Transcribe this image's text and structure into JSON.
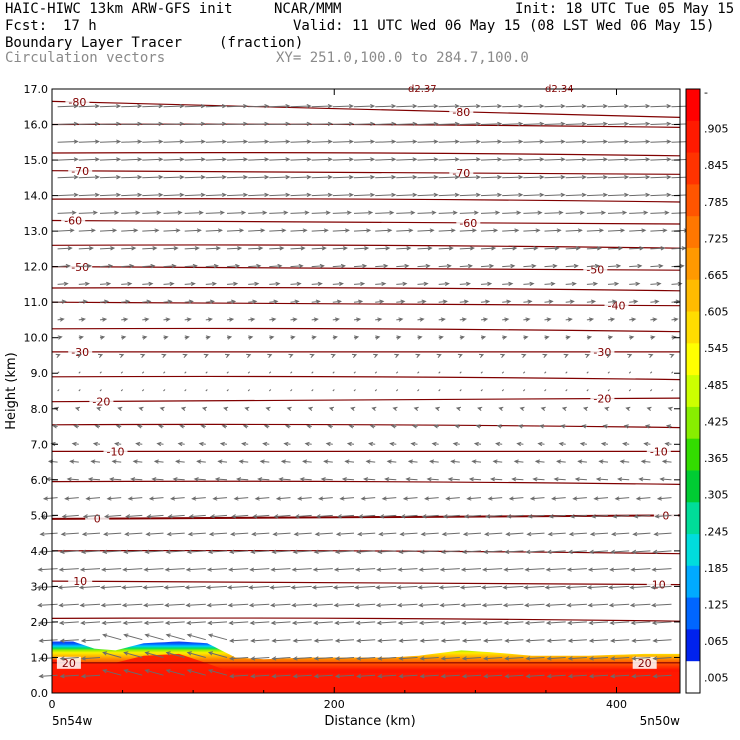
{
  "header": {
    "model": "HAIC-HIWC 13km ARW-GFS init",
    "org": "NCAR/MMM",
    "init": "Init: 18 UTC Tue 05 May 15",
    "fcst_label": "Fcst:",
    "fcst_value": "17 h",
    "valid": "Valid: 11 UTC Wed 06 May 15 (08 LST Wed 06 May 15)",
    "field": "Boundary Layer Tracer",
    "field_units": "(fraction)",
    "overlay": "Circulation vectors",
    "xy": "XY= 251.0,100.0 to 284.7,100.0",
    "top_clipped_left": "d2.37",
    "top_clipped_right": "d2.34"
  },
  "chart_data": {
    "type": "heatmap",
    "xlabel": "Distance (km)",
    "ylabel": "Height (km)",
    "xlim": [
      0,
      445
    ],
    "ylim": [
      0,
      17
    ],
    "x_ticks": [
      "0",
      "200",
      "400"
    ],
    "x_tick_values": [
      0,
      200,
      400
    ],
    "x_end_left": "5n54w",
    "x_end_right": "5n50w",
    "y_ticks": [
      "0.0",
      "1.0",
      "2.0",
      "3.0",
      "4.0",
      "5.0",
      "6.0",
      "7.0",
      "8.0",
      "9.0",
      "10.0",
      "11.0",
      "12.0",
      "13.0",
      "14.0",
      "15.0",
      "16.0",
      "17.0"
    ],
    "colorbar": {
      "labels": [
        "-",
        ".905",
        ".845",
        ".785",
        ".725",
        ".665",
        ".605",
        ".545",
        ".485",
        ".425",
        ".365",
        ".305",
        ".245",
        ".185",
        ".125",
        ".065",
        ".005"
      ],
      "colors_top_to_bottom": [
        "#ff0000",
        "#ff1a00",
        "#ff3300",
        "#ff5500",
        "#ff7700",
        "#ff9900",
        "#ffbb00",
        "#ffdd00",
        "#ffff00",
        "#ccff00",
        "#88ee00",
        "#33dd00",
        "#00cc33",
        "#00dd99",
        "#00dddd",
        "#00aaff",
        "#0066ff",
        "#0022ee",
        "#ffffff"
      ]
    },
    "tracer_layer": {
      "top_height_km": [
        [
          0,
          1.45
        ],
        [
          15,
          1.45
        ],
        [
          30,
          1.25
        ],
        [
          45,
          1.2
        ],
        [
          65,
          1.4
        ],
        [
          90,
          1.45
        ],
        [
          110,
          1.4
        ],
        [
          130,
          1.0
        ],
        [
          150,
          0.95
        ],
        [
          180,
          1.0
        ],
        [
          200,
          1.0
        ],
        [
          240,
          1.0
        ],
        [
          260,
          1.05
        ],
        [
          290,
          1.2
        ],
        [
          310,
          1.15
        ],
        [
          340,
          1.05
        ],
        [
          380,
          1.05
        ],
        [
          420,
          1.1
        ],
        [
          445,
          1.1
        ]
      ]
    },
    "temperature_contours": [
      {
        "label": "-80",
        "y_km_left": 16.65,
        "y_km_right": 16.2,
        "label_x_km": [
          18,
          290
        ]
      },
      {
        "label": "-70",
        "y_km_left": 14.7,
        "y_km_right": 14.6,
        "label_x_km": [
          20,
          290
        ]
      },
      {
        "label": "-60",
        "y_km_left": 13.3,
        "y_km_right": 13.2,
        "label_x_km": [
          15,
          295
        ]
      },
      {
        "label": "-50",
        "y_km_left": 12.0,
        "y_km_right": 11.9,
        "label_x_km": [
          20,
          385
        ]
      },
      {
        "label": "-40",
        "y_km_left": 11.0,
        "y_km_right": 10.9,
        "label_x_km": [
          400
        ]
      },
      {
        "label": "-30",
        "y_km_left": 9.6,
        "y_km_right": 9.6,
        "label_x_km": [
          20,
          390
        ]
      },
      {
        "label": "-20",
        "y_km_left": 8.2,
        "y_km_right": 8.3,
        "label_x_km": [
          35,
          390
        ]
      },
      {
        "label": "-10",
        "y_km_left": 6.8,
        "y_km_right": 6.8,
        "label_x_km": [
          45,
          430
        ]
      },
      {
        "label": "0",
        "y_km_left": 4.9,
        "y_km_right": 5.0,
        "label_x_km": [
          32,
          435
        ]
      },
      {
        "label": "10",
        "y_km_left": 3.15,
        "y_km_right": 3.05,
        "label_x_km": [
          20,
          430
        ]
      },
      {
        "label": "20",
        "y_km_left": 0.85,
        "y_km_right": 0.85,
        "label_x_km": [
          12,
          420
        ]
      }
    ],
    "unlabeled_isotherms_km": [
      16.0,
      15.2,
      13.9,
      12.6,
      11.4,
      10.25,
      8.9,
      7.55,
      5.95,
      4.0,
      2.1
    ],
    "vectors": {
      "description_levels_km": [
        [
          16.5,
          1
        ],
        [
          14,
          1
        ],
        [
          11.5,
          0.5
        ],
        [
          9.5,
          0.1
        ],
        [
          7,
          -0.3
        ],
        [
          5,
          -0.8
        ],
        [
          3,
          -1
        ],
        [
          1.5,
          -0.9
        ]
      ]
    }
  }
}
